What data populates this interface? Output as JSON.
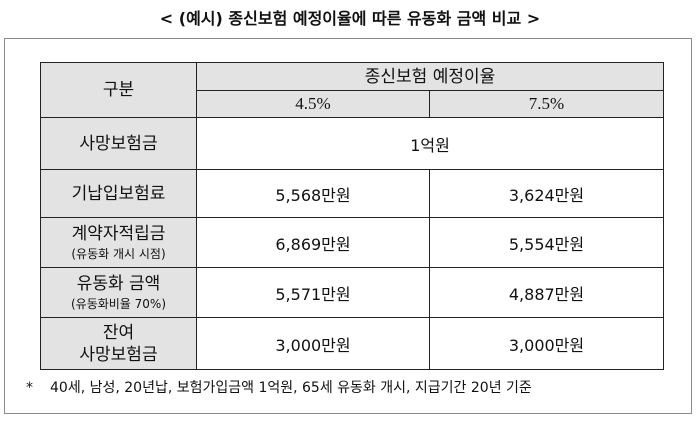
{
  "title": "< (예시) 종신보험 예정이율에 따른 유동화 금액 비교 >",
  "table": {
    "header_category": "구분",
    "header_group": "종신보험 예정이율",
    "rate_a": "4.5%",
    "rate_b": "7.5%",
    "rows": [
      {
        "label": "사망보험금",
        "sub": "",
        "merged": "1억원"
      },
      {
        "label": "기납입보험료",
        "sub": "",
        "a": "5,568만원",
        "b": "3,624만원"
      },
      {
        "label": "계약자적립금",
        "sub": "(유동화 개시 시점)",
        "a": "6,869만원",
        "b": "5,554만원"
      },
      {
        "label": "유동화 금액",
        "sub": "(유동화비율 70%)",
        "a": "5,571만원",
        "b": "4,887만원"
      },
      {
        "label_line1": "잔여",
        "label_line2": "사망보험금",
        "a": "3,000만원",
        "b": "3,000만원"
      }
    ]
  },
  "footnote": {
    "marker": "*",
    "text": "40세, 남성, 20년납, 보험가입금액 1억원, 65세 유동화 개시, 지급기간 20년 기준"
  }
}
